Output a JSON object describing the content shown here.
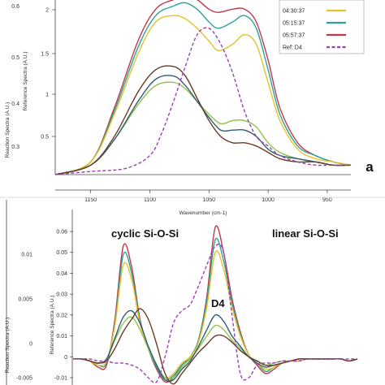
{
  "colors": {
    "red": "#c0394b",
    "gold": "#e4c22a",
    "lightgreen": "#8ec54c",
    "teal": "#2da19a",
    "darkteal": "#2e5e72",
    "brown": "#6a3a26",
    "purple": "#9b3fb5",
    "axis": "#333333"
  },
  "chart_data": [
    {
      "type": "line",
      "panel_label": "a",
      "xlabel": "Wavenumber (cm-1)",
      "ylabel_left": "Reaction Spectra (A.U.)",
      "ylabel_right": "Reference Spectra (A.U.)",
      "x_inverted": true,
      "xlim": [
        930,
        1180
      ],
      "x_ticks": [
        "1150",
        "1100",
        "1050",
        "1000",
        "950"
      ],
      "y_ticks_left": [
        "0.3",
        "0.4",
        "0.5",
        "0.6"
      ],
      "y_ticks_right": [
        "2",
        "1.5",
        "1",
        "0.5"
      ],
      "legend": {
        "placement": "top-right",
        "entries": [
          {
            "label": "04:30:37",
            "color_key": "gold"
          },
          {
            "label": "05:15:37",
            "color_key": "teal"
          },
          {
            "label": "05:57:37",
            "color_key": "red"
          },
          {
            "label": "Ref: D4",
            "color_key": "purple",
            "dashed": true
          }
        ]
      },
      "series": [
        {
          "color_key": "red",
          "x": [
            1180,
            1150,
            1130,
            1110,
            1095,
            1080,
            1070,
            1060,
            1050,
            1042,
            1030,
            1020,
            1010,
            1000,
            990,
            975,
            960,
            945,
            930
          ],
          "y": [
            0.24,
            0.28,
            0.45,
            0.66,
            0.76,
            0.79,
            0.8,
            0.79,
            0.76,
            0.75,
            0.76,
            0.76,
            0.72,
            0.6,
            0.45,
            0.34,
            0.3,
            0.28,
            0.27
          ]
        },
        {
          "color_key": "teal",
          "x": [
            1180,
            1150,
            1130,
            1110,
            1095,
            1080,
            1070,
            1060,
            1050,
            1042,
            1030,
            1020,
            1010,
            1000,
            990,
            975,
            960,
            945,
            930
          ],
          "y": [
            0.24,
            0.28,
            0.44,
            0.64,
            0.74,
            0.77,
            0.78,
            0.76,
            0.72,
            0.7,
            0.72,
            0.74,
            0.7,
            0.57,
            0.43,
            0.33,
            0.3,
            0.28,
            0.27
          ]
        },
        {
          "color_key": "gold",
          "x": [
            1180,
            1150,
            1130,
            1110,
            1095,
            1080,
            1070,
            1060,
            1050,
            1042,
            1030,
            1020,
            1010,
            1000,
            990,
            975,
            960,
            945,
            930
          ],
          "y": [
            0.24,
            0.28,
            0.43,
            0.62,
            0.72,
            0.74,
            0.73,
            0.7,
            0.66,
            0.63,
            0.65,
            0.68,
            0.65,
            0.53,
            0.41,
            0.32,
            0.29,
            0.28,
            0.27
          ]
        },
        {
          "color_key": "lightgreen",
          "x": [
            1180,
            1150,
            1130,
            1110,
            1095,
            1080,
            1070,
            1060,
            1050,
            1040,
            1030,
            1020,
            1010,
            1000,
            990,
            975,
            960,
            945,
            930
          ],
          "y": [
            0.24,
            0.27,
            0.35,
            0.46,
            0.52,
            0.53,
            0.51,
            0.47,
            0.43,
            0.4,
            0.41,
            0.41,
            0.39,
            0.34,
            0.31,
            0.29,
            0.28,
            0.27,
            0.27
          ]
        },
        {
          "color_key": "darkteal",
          "x": [
            1180,
            1150,
            1130,
            1110,
            1095,
            1080,
            1070,
            1060,
            1050,
            1040,
            1030,
            1020,
            1010,
            1000,
            990,
            975,
            960,
            945,
            930
          ],
          "y": [
            0.24,
            0.27,
            0.35,
            0.47,
            0.54,
            0.55,
            0.52,
            0.47,
            0.42,
            0.38,
            0.38,
            0.38,
            0.36,
            0.32,
            0.3,
            0.29,
            0.28,
            0.27,
            0.27
          ]
        },
        {
          "color_key": "brown",
          "x": [
            1180,
            1150,
            1130,
            1110,
            1095,
            1080,
            1070,
            1060,
            1050,
            1040,
            1030,
            1020,
            1010,
            1000,
            990,
            975,
            960,
            945,
            930
          ],
          "y": [
            0.24,
            0.27,
            0.36,
            0.5,
            0.57,
            0.58,
            0.55,
            0.48,
            0.41,
            0.36,
            0.34,
            0.34,
            0.33,
            0.31,
            0.29,
            0.28,
            0.28,
            0.27,
            0.27
          ]
        },
        {
          "color_key": "purple",
          "dashed": true,
          "x": [
            1180,
            1150,
            1120,
            1100,
            1090,
            1080,
            1070,
            1060,
            1050,
            1040,
            1030,
            1020,
            1010,
            1000,
            990,
            975,
            960,
            945,
            930
          ],
          "y": [
            0.24,
            0.25,
            0.26,
            0.3,
            0.37,
            0.47,
            0.58,
            0.68,
            0.7,
            0.65,
            0.56,
            0.44,
            0.36,
            0.33,
            0.3,
            0.28,
            0.27,
            0.27,
            0.27
          ]
        }
      ]
    },
    {
      "type": "line",
      "y_ticks_left": [
        "0.01",
        "0.005",
        "0",
        "-0.005"
      ],
      "y_ticks_right": [
        "0.06",
        "0.05",
        "0.04",
        "0.03",
        "0.02",
        "0.01",
        "0",
        "-0.01"
      ],
      "ylabel_left": "Reaction Spectra (A.U.)",
      "ylabel_right": "Reference Spectra (A.U.)",
      "annotations": [
        "cyclic Si-O-Si",
        "linear Si-O-Si",
        "D4"
      ],
      "x_points": [
        0,
        10,
        20,
        30,
        40,
        50,
        60,
        70,
        80,
        90,
        100,
        110,
        120,
        130,
        140,
        150,
        160,
        170,
        180,
        190,
        200,
        210,
        220,
        230,
        240,
        250,
        260,
        270,
        280,
        290,
        300,
        310,
        320,
        330,
        340
      ],
      "series": [
        {
          "color_key": "red",
          "values": [
            -0.001,
            -0.001,
            -0.002,
            -0.005,
            -0.004,
            0.018,
            0.053,
            0.043,
            0.018,
            0.004,
            -0.006,
            -0.012,
            -0.01,
            -0.004,
            0.0,
            0.008,
            0.029,
            0.062,
            0.05,
            0.028,
            0.012,
            0.001,
            -0.004,
            -0.008,
            -0.006,
            -0.003,
            -0.002,
            -0.002,
            -0.001,
            -0.001,
            -0.001,
            -0.001,
            -0.001,
            -0.002,
            -0.001
          ]
        },
        {
          "color_key": "teal",
          "values": [
            -0.001,
            -0.001,
            -0.002,
            -0.004,
            -0.003,
            0.016,
            0.049,
            0.04,
            0.017,
            0.004,
            -0.005,
            -0.011,
            -0.009,
            -0.004,
            0.0,
            0.008,
            0.027,
            0.056,
            0.046,
            0.026,
            0.011,
            0.001,
            -0.003,
            -0.007,
            -0.005,
            -0.003,
            -0.002,
            -0.002,
            -0.001,
            -0.001,
            -0.001,
            -0.001,
            -0.001,
            -0.002,
            -0.001
          ]
        },
        {
          "color_key": "gold",
          "values": [
            -0.001,
            -0.001,
            -0.002,
            -0.004,
            -0.002,
            0.015,
            0.044,
            0.037,
            0.016,
            0.004,
            -0.004,
            -0.01,
            -0.008,
            -0.003,
            0.0,
            0.007,
            0.024,
            0.05,
            0.042,
            0.024,
            0.01,
            0.001,
            -0.003,
            -0.006,
            -0.005,
            -0.003,
            -0.002,
            -0.002,
            -0.001,
            -0.001,
            -0.001,
            -0.001,
            -0.001,
            -0.002,
            -0.001
          ]
        },
        {
          "color_key": "lightgreen",
          "values": [
            -0.001,
            -0.001,
            -0.002,
            -0.003,
            -0.001,
            0.008,
            0.016,
            0.019,
            0.013,
            0.004,
            -0.004,
            -0.01,
            -0.01,
            -0.005,
            -0.001,
            0.004,
            0.01,
            0.015,
            0.013,
            0.008,
            0.004,
            0.0,
            -0.002,
            -0.004,
            -0.003,
            -0.002,
            -0.002,
            -0.001,
            -0.001,
            -0.001,
            -0.001,
            -0.001,
            -0.001,
            -0.002,
            -0.001
          ]
        },
        {
          "color_key": "darkteal",
          "values": [
            -0.001,
            -0.001,
            -0.002,
            -0.003,
            -0.001,
            0.009,
            0.019,
            0.022,
            0.016,
            0.005,
            -0.004,
            -0.011,
            -0.011,
            -0.006,
            -0.002,
            0.005,
            0.013,
            0.02,
            0.017,
            0.01,
            0.005,
            0.0,
            -0.003,
            -0.005,
            -0.004,
            -0.003,
            -0.002,
            -0.001,
            -0.001,
            -0.001,
            -0.001,
            -0.001,
            -0.001,
            -0.002,
            -0.001
          ]
        },
        {
          "color_key": "brown",
          "values": [
            -0.001,
            -0.001,
            -0.002,
            -0.003,
            -0.002,
            0.004,
            0.012,
            0.018,
            0.023,
            0.018,
            0.006,
            -0.008,
            -0.013,
            -0.008,
            -0.003,
            0.002,
            0.006,
            0.01,
            0.01,
            0.007,
            0.003,
            0.0,
            -0.002,
            -0.004,
            -0.004,
            -0.003,
            -0.002,
            -0.001,
            -0.001,
            -0.001,
            -0.001,
            -0.001,
            -0.001,
            -0.002,
            -0.001
          ]
        },
        {
          "color_key": "purple",
          "dashed": true,
          "values": [
            -0.001,
            -0.001,
            -0.001,
            -0.002,
            -0.002,
            -0.003,
            -0.003,
            -0.004,
            -0.006,
            -0.01,
            -0.012,
            0.0,
            0.016,
            0.022,
            0.025,
            0.034,
            0.044,
            0.053,
            0.05,
            0.02,
            -0.008,
            -0.01,
            -0.004,
            -0.003,
            -0.003,
            -0.002,
            -0.002,
            -0.002,
            -0.001,
            -0.001,
            -0.001,
            -0.001,
            -0.001,
            -0.001,
            -0.001
          ]
        }
      ]
    }
  ],
  "panel_a_label": "a",
  "legend_a": [
    "04:30:37",
    "05:15:37",
    "05:57:37",
    "Ref: D4"
  ],
  "texts": {
    "xlabel_a": "Wavenumber (cm-1)",
    "ylabel_left": "Reaction Spectra (A.U.)",
    "ylabel_right": "Reference Spectra (A.U.)",
    "cyclic": "cyclic Si-O-Si",
    "linear": "linear Si-O-Si",
    "d4": "D4"
  }
}
